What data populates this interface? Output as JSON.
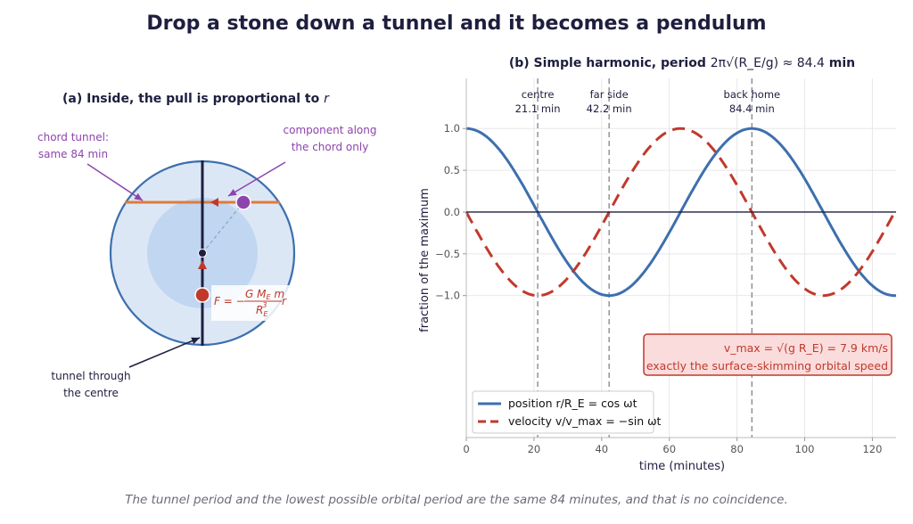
{
  "title": "Drop a stone down a tunnel and it becomes a pendulum",
  "footer": "The tunnel period and the lowest possible orbital period are the same 84 minutes, and that is no coincidence.",
  "panel_a": {
    "title_prefix": "(a) Inside, the pull is proportional to",
    "title_var": "r",
    "chord_note_line1": "chord tunnel:",
    "chord_note_line2": "same 84 min",
    "component_note_line1": "component along",
    "component_note_line2": "the chord only",
    "tunnel_note_line1": "tunnel through",
    "tunnel_note_line2": "the centre",
    "force_prefix": "F = −",
    "force_num": "G M",
    "force_num_sub": "E",
    "force_num_tail": " m",
    "force_den": "R",
    "force_den_sub": "E",
    "force_den_sup": "3",
    "force_suffix": " r"
  },
  "colors": {
    "position": "#3d6fad",
    "velocity": "#c0392b",
    "chord": "#e07b39",
    "purple": "#8e44ad",
    "dark": "#1e1e3f"
  },
  "chart_data": {
    "type": "line",
    "title_prefix": "(b) Simple harmonic, period",
    "title_formula": "2π√(R_E/g) ≈ 84.4",
    "title_suffix": "min",
    "xlabel": "time   (minutes)",
    "ylabel": "fraction of the maximum",
    "xlim": [
      0,
      127
    ],
    "ylim": [
      -2.7,
      1.6
    ],
    "xticks": [
      0,
      20,
      40,
      60,
      80,
      100,
      120
    ],
    "yticks": [
      1.0,
      0.5,
      0.0,
      -0.5,
      -1.0
    ],
    "ytick_labels": [
      "1.0",
      "0.5",
      "0.0",
      "−0.5",
      "−1.0"
    ],
    "grid": true,
    "period_min": 84.4,
    "series": [
      {
        "name": "position  r/R_E = cos ωt",
        "style": "solid",
        "color": "#3d6fad",
        "function": "cos"
      },
      {
        "name": "velocity  v/v_max = −sin ωt",
        "style": "dashed",
        "color": "#c0392b",
        "function": "-sin"
      }
    ],
    "vlines": [
      {
        "x": 21.1,
        "label1": "centre",
        "label2": "21.1 min"
      },
      {
        "x": 42.2,
        "label1": "far side",
        "label2": "42.2 min"
      },
      {
        "x": 84.4,
        "label1": "back home",
        "label2": "84.4 min"
      }
    ],
    "legend_placement": "lower-left",
    "annotation_line1": "v_max = √(g R_E) = 7.9 km/s",
    "annotation_line2": "exactly the surface-skimming orbital speed"
  }
}
